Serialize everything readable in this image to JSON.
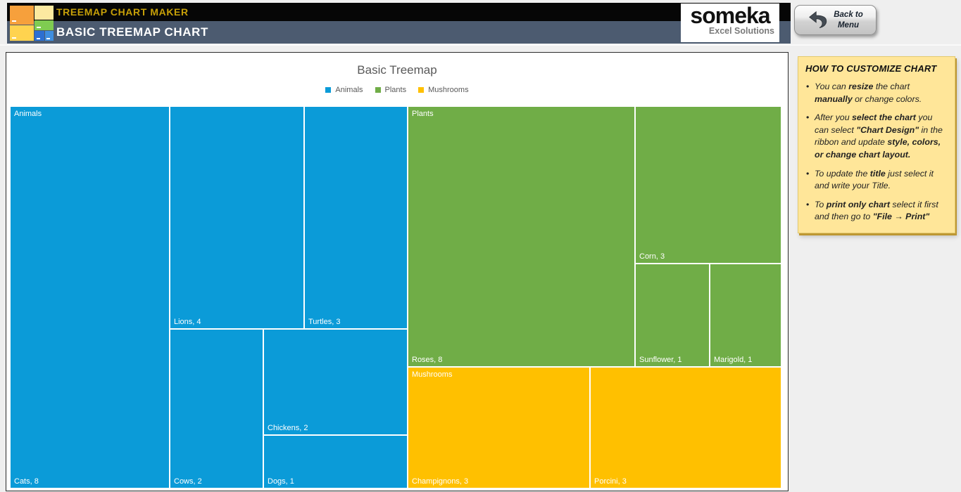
{
  "header": {
    "app_title": "TREEMAP CHART MAKER",
    "page_title": "BASIC TREEMAP CHART",
    "logo": {
      "brand": "someka",
      "tagline": "Excel Solutions"
    },
    "back_button": {
      "line1": "Back to",
      "line2": "Menu"
    }
  },
  "chart_data": {
    "type": "treemap",
    "title": "Basic Treemap",
    "legend_position": "top",
    "series": [
      {
        "name": "Animals",
        "color": "#0b9bd8",
        "children": [
          {
            "label": "Cats",
            "value": 8
          },
          {
            "label": "Lions",
            "value": 4
          },
          {
            "label": "Turtles",
            "value": 3
          },
          {
            "label": "Cows",
            "value": 2
          },
          {
            "label": "Chickens",
            "value": 2
          },
          {
            "label": "Dogs",
            "value": 1
          }
        ]
      },
      {
        "name": "Plants",
        "color": "#70ad47",
        "children": [
          {
            "label": "Roses",
            "value": 8
          },
          {
            "label": "Corn",
            "value": 3
          },
          {
            "label": "Sunflower",
            "value": 1
          },
          {
            "label": "Marigold",
            "value": 1
          }
        ]
      },
      {
        "name": "Mushrooms",
        "color": "#ffc000",
        "children": [
          {
            "label": "Champignons",
            "value": 3
          },
          {
            "label": "Porcini",
            "value": 3
          }
        ]
      }
    ]
  },
  "sidebar": {
    "title": "HOW TO CUSTOMIZE CHART",
    "bullets": [
      {
        "segments": [
          {
            "t": "You can "
          },
          {
            "t": "resize",
            "b": true
          },
          {
            "t": " the chart "
          },
          {
            "t": "manually",
            "b": true
          },
          {
            "t": " or change colors."
          }
        ]
      },
      {
        "segments": [
          {
            "t": "After you "
          },
          {
            "t": "select the chart",
            "b": true
          },
          {
            "t": " you can select "
          },
          {
            "t": "\"Chart Design\"",
            "b": true
          },
          {
            "t": " in the ribbon and update "
          },
          {
            "t": "style, colors,  or change chart layout.",
            "b": true
          }
        ]
      },
      {
        "segments": [
          {
            "t": "To update the "
          },
          {
            "t": "title",
            "b": true
          },
          {
            "t": " just select it and write your Title."
          }
        ]
      },
      {
        "segments": [
          {
            "t": "To "
          },
          {
            "t": "print only chart",
            "b": true
          },
          {
            "t": " select it first and then go to "
          },
          {
            "t": "\"File → Print\"",
            "b": true
          }
        ]
      }
    ]
  },
  "colors": {
    "header_accent_gold": "#c7a008",
    "header_slate": "#4c5b70",
    "chart_text_gray": "#595959",
    "panel_yellow": "#ffe699"
  }
}
